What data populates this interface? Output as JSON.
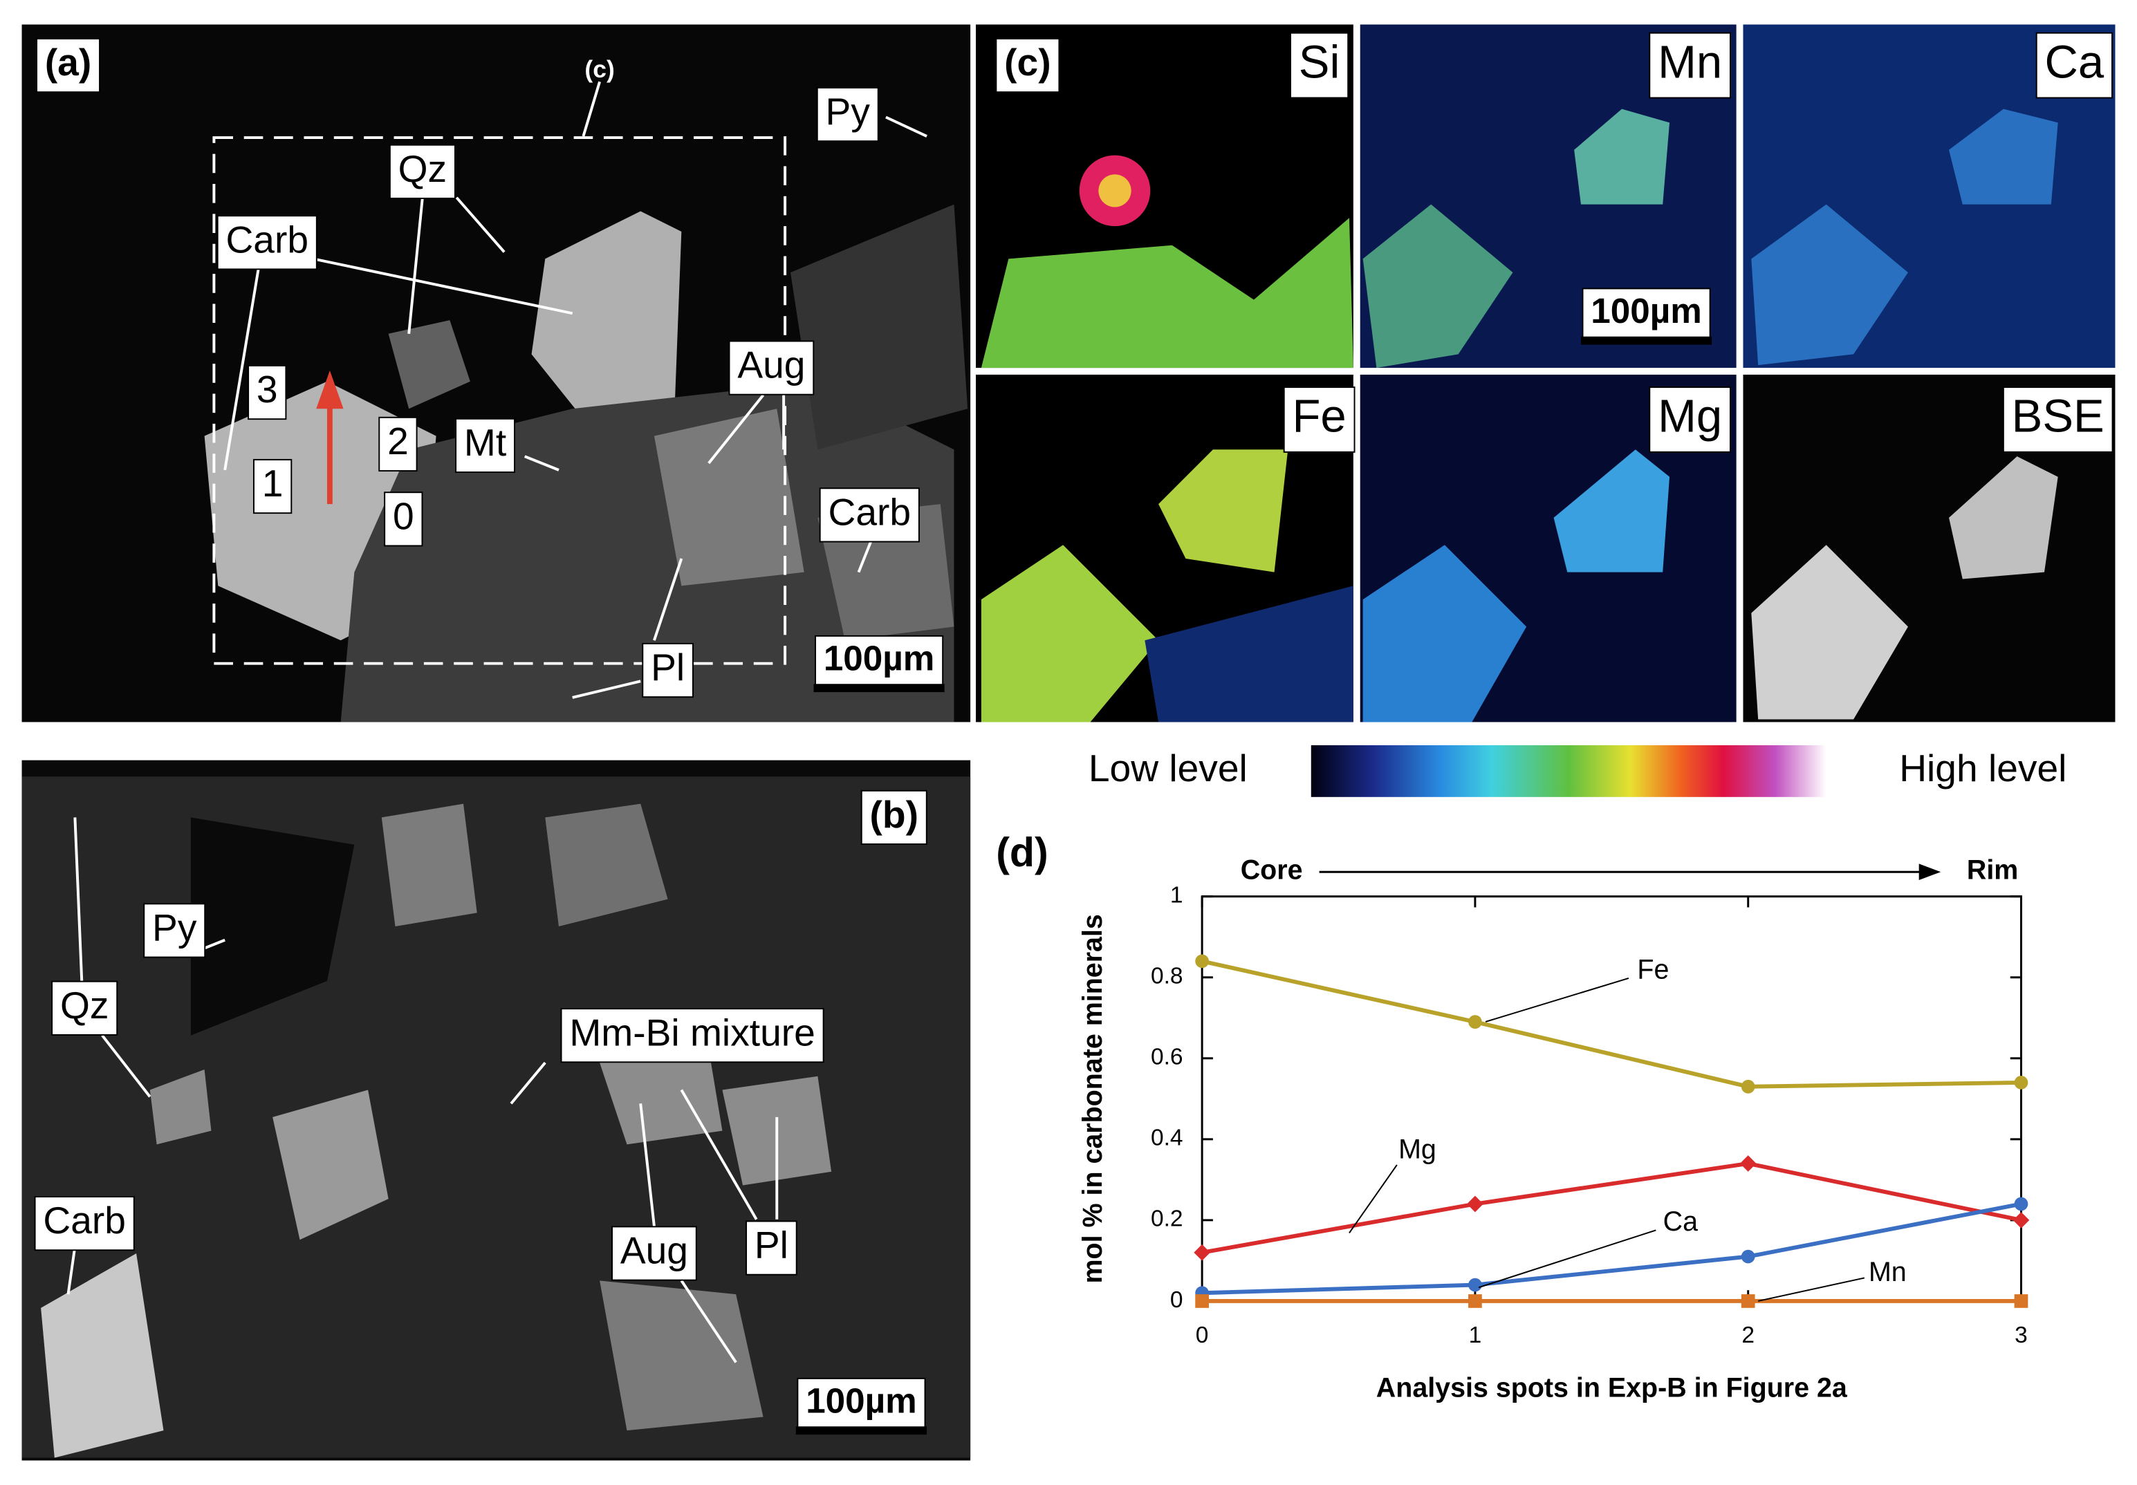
{
  "panel_a": {
    "label": "(a)",
    "inset_label": "(c)",
    "labels": [
      "Py",
      "Qz",
      "Carb",
      "3",
      "2",
      "1",
      "0",
      "Mt",
      "Aug",
      "Carb",
      "Pl"
    ],
    "scale_bar": "100µm"
  },
  "panel_b": {
    "label": "(b)",
    "labels": [
      "Py",
      "Qz",
      "Mm-Bi mixture",
      "Aug",
      "Pl",
      "Carb"
    ],
    "scale_bar": "100µm"
  },
  "panel_c": {
    "label": "(c)",
    "maps": [
      "Si",
      "Mn",
      "Ca",
      "Fe",
      "Mg",
      "BSE"
    ],
    "scale_bar": "100µm"
  },
  "colorbar": {
    "low": "Low level",
    "high": "High level"
  },
  "chart_data": {
    "type": "line",
    "label": "(d)",
    "x": [
      0,
      1,
      2,
      3
    ],
    "xlim": [
      0,
      3
    ],
    "xticks": [
      0,
      1,
      2,
      3
    ],
    "ylim": [
      0,
      1
    ],
    "yticks": [
      0,
      0.2,
      0.4,
      0.6,
      0.8,
      1
    ],
    "xlabel": "Analysis spots in Exp-B in Figure 2a",
    "ylabel": "mol % in carbonate minerals",
    "annotations": [
      "Core",
      "Rim"
    ],
    "series": [
      {
        "name": "Fe",
        "color": "#b8a229",
        "marker": "circle",
        "values": [
          0.84,
          0.69,
          0.53,
          0.54
        ]
      },
      {
        "name": "Mg",
        "color": "#d92b2b",
        "marker": "diamond",
        "values": [
          0.12,
          0.24,
          0.34,
          0.2
        ]
      },
      {
        "name": "Ca",
        "color": "#3a6fc4",
        "marker": "circle",
        "values": [
          0.02,
          0.04,
          0.11,
          0.24
        ]
      },
      {
        "name": "Mn",
        "color": "#d97526",
        "marker": "square",
        "values": [
          0,
          0,
          0,
          0
        ]
      }
    ]
  }
}
